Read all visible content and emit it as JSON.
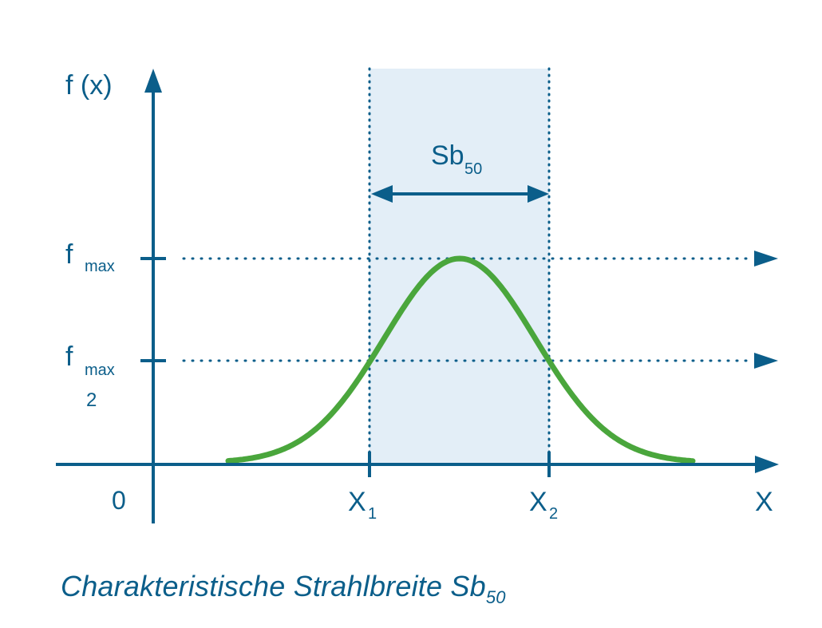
{
  "colors": {
    "axis": "#0b5e8a",
    "curve": "#4aa63c",
    "band": "#e3eef7"
  },
  "y_axis_label": "f (x)",
  "x_axis_label": "X",
  "origin_label": "0",
  "fmax": {
    "main": "f",
    "sub": "max"
  },
  "fmax_half": {
    "main": "f",
    "sub": "max",
    "denominator": "2"
  },
  "x1": {
    "main": "X",
    "sub": "1"
  },
  "x2": {
    "main": "X",
    "sub": "2"
  },
  "width_label": {
    "main": "Sb",
    "sub": "50"
  },
  "caption": {
    "main": "Charakteristische Strahlbreite Sb",
    "sub": "50"
  }
}
